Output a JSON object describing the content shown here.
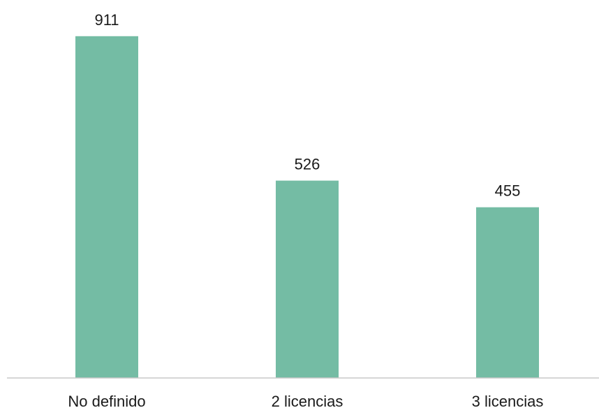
{
  "chart_data": {
    "type": "bar",
    "categories": [
      "No definido",
      "2 licencias",
      "3 licencias"
    ],
    "values": [
      911,
      526,
      455
    ],
    "data_labels": [
      "911",
      "526",
      "455"
    ],
    "title": "",
    "xlabel": "",
    "ylabel": "",
    "ylim": [
      0,
      1000
    ],
    "grid": false,
    "legend": "none",
    "bar_color": "#74bca4",
    "axis_color": "#c8c8c8"
  }
}
